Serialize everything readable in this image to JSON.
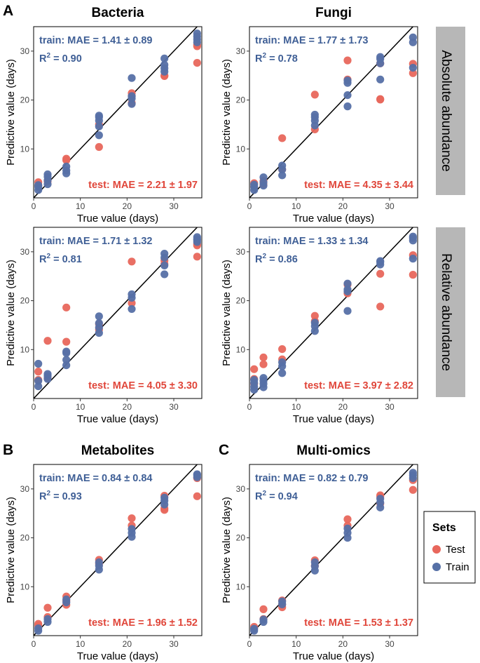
{
  "colors": {
    "test": "#e8675c",
    "train": "#5670a6",
    "train_text": "#3f5f96",
    "test_text": "#e0463a",
    "strip": "#b7b7b7"
  },
  "panel_letters": [
    "A",
    "B",
    "C"
  ],
  "strips": [
    "Absolute abundance",
    "Relative abundance"
  ],
  "legend": {
    "title": "Sets",
    "items": [
      "Test",
      "Train"
    ]
  },
  "chart_data": [
    {
      "type": "scatter",
      "title": "Bacteria",
      "xlabel": "True value (days)",
      "ylabel": "Predictive value (days)",
      "xlim": [
        0,
        36
      ],
      "ylim": [
        0,
        35
      ],
      "xticks": [
        0,
        10,
        20,
        30
      ],
      "yticks": [
        10,
        20,
        30
      ],
      "train_text": "train: MAE = 1.41 ± 0.89",
      "r2_value": "0.90",
      "test_text": "test: MAE = 2.21 ± 1.97",
      "train": [
        [
          1,
          1.6
        ],
        [
          1,
          2.2
        ],
        [
          1,
          2.6
        ],
        [
          3,
          2.8
        ],
        [
          3,
          3.6
        ],
        [
          3,
          4.3
        ],
        [
          3,
          4.8
        ],
        [
          7,
          5
        ],
        [
          7,
          5.6
        ],
        [
          7,
          6.4
        ],
        [
          14,
          12.8
        ],
        [
          14,
          14.6
        ],
        [
          14,
          15.8
        ],
        [
          14,
          16.5
        ],
        [
          14,
          16.8
        ],
        [
          21,
          19.2
        ],
        [
          21,
          20.3
        ],
        [
          21,
          20.8
        ],
        [
          21,
          24.5
        ],
        [
          28,
          25.8
        ],
        [
          28,
          26.5
        ],
        [
          28,
          27.2
        ],
        [
          28,
          28.5
        ],
        [
          35,
          31.8
        ],
        [
          35,
          32.4
        ],
        [
          35,
          33
        ],
        [
          35,
          33.6
        ]
      ],
      "test": [
        [
          1,
          2.5
        ],
        [
          1,
          3.2
        ],
        [
          3,
          3.4
        ],
        [
          7,
          7.7
        ],
        [
          7,
          8
        ],
        [
          14,
          10.4
        ],
        [
          14,
          15
        ],
        [
          21,
          19.4
        ],
        [
          21,
          20.8
        ],
        [
          21,
          21.4
        ],
        [
          28,
          24.9
        ],
        [
          28,
          25
        ],
        [
          35,
          27.6
        ],
        [
          35,
          31
        ],
        [
          35,
          31.3
        ]
      ]
    },
    {
      "type": "scatter",
      "title": "Fungi",
      "xlabel": "True value (days)",
      "ylabel": "Predictive value (days)",
      "xlim": [
        0,
        36
      ],
      "ylim": [
        0,
        35
      ],
      "xticks": [
        0,
        10,
        20,
        30
      ],
      "yticks": [
        10,
        20,
        30
      ],
      "train_text": "train: MAE = 1.77 ± 1.73",
      "r2_value": "0.78",
      "test_text": "test: MAE = 4.35 ± 3.44",
      "train": [
        [
          1,
          1.6
        ],
        [
          1,
          2.2
        ],
        [
          1,
          2.7
        ],
        [
          3,
          2.5
        ],
        [
          3,
          3.2
        ],
        [
          3,
          4.2
        ],
        [
          7,
          4.6
        ],
        [
          7,
          5.8
        ],
        [
          7,
          6.6
        ],
        [
          14,
          14.8
        ],
        [
          14,
          15.8
        ],
        [
          14,
          16.5
        ],
        [
          14,
          17
        ],
        [
          21,
          18.7
        ],
        [
          21,
          21
        ],
        [
          21,
          23.5
        ],
        [
          21,
          24
        ],
        [
          28,
          24.2
        ],
        [
          28,
          27.5
        ],
        [
          28,
          28.4
        ],
        [
          28,
          28.8
        ],
        [
          35,
          26.6
        ],
        [
          35,
          31.8
        ],
        [
          35,
          32.8
        ]
      ],
      "test": [
        [
          1,
          2.3
        ],
        [
          1,
          3
        ],
        [
          3,
          2.8
        ],
        [
          3,
          3.5
        ],
        [
          7,
          5.8
        ],
        [
          7,
          12.2
        ],
        [
          14,
          14
        ],
        [
          14,
          21.1
        ],
        [
          21,
          24.2
        ],
        [
          21,
          28.1
        ],
        [
          28,
          20.1
        ],
        [
          28,
          20.2
        ],
        [
          28,
          27.5
        ],
        [
          35,
          25.5
        ],
        [
          35,
          27.4
        ]
      ]
    },
    {
      "type": "scatter",
      "title": "",
      "xlabel": "True value (days)",
      "ylabel": "Predictive value (days)",
      "xlim": [
        0,
        36
      ],
      "ylim": [
        0,
        35
      ],
      "xticks": [
        0,
        10,
        20,
        30
      ],
      "yticks": [
        10,
        20,
        30
      ],
      "train_text": "train: MAE = 1.71 ± 1.32",
      "r2_value": "0.81",
      "test_text": "test: MAE = 4.05 ± 3.30",
      "train": [
        [
          1,
          2.5
        ],
        [
          1,
          3.6
        ],
        [
          1,
          7.1
        ],
        [
          3,
          4
        ],
        [
          3,
          4.6
        ],
        [
          3,
          5
        ],
        [
          7,
          6.8
        ],
        [
          7,
          7.9
        ],
        [
          7,
          9.3
        ],
        [
          7,
          9.6
        ],
        [
          14,
          13.4
        ],
        [
          14,
          14.5
        ],
        [
          14,
          15.4
        ],
        [
          14,
          16.8
        ],
        [
          21,
          18.3
        ],
        [
          21,
          20.6
        ],
        [
          21,
          21.3
        ],
        [
          28,
          25.4
        ],
        [
          28,
          27.2
        ],
        [
          28,
          28.8
        ],
        [
          28,
          29.6
        ],
        [
          35,
          32
        ],
        [
          35,
          32.4
        ],
        [
          35,
          33
        ],
        [
          35,
          32.6
        ]
      ],
      "test": [
        [
          1,
          3.8
        ],
        [
          1,
          5.5
        ],
        [
          3,
          4.2
        ],
        [
          3,
          11.8
        ],
        [
          7,
          11.6
        ],
        [
          7,
          18.6
        ],
        [
          14,
          14.1
        ],
        [
          14,
          15.2
        ],
        [
          21,
          19.5
        ],
        [
          21,
          28
        ],
        [
          28,
          27.5
        ],
        [
          28,
          28.2
        ],
        [
          35,
          29
        ],
        [
          35,
          31.3
        ],
        [
          35,
          31.6
        ]
      ]
    },
    {
      "type": "scatter",
      "title": "",
      "xlabel": "True value (days)",
      "ylabel": "Predictive value (days)",
      "xlim": [
        0,
        36
      ],
      "ylim": [
        0,
        35
      ],
      "xticks": [
        0,
        10,
        20,
        30
      ],
      "yticks": [
        10,
        20,
        30
      ],
      "train_text": "train: MAE = 1.33 ± 1.34",
      "r2_value": "0.86",
      "test_text": "test: MAE = 3.97 ± 2.82",
      "train": [
        [
          1,
          1.8
        ],
        [
          1,
          2.4
        ],
        [
          1,
          3.2
        ],
        [
          1,
          3.8
        ],
        [
          3,
          2.3
        ],
        [
          3,
          3
        ],
        [
          3,
          3.6
        ],
        [
          3,
          4.2
        ],
        [
          7,
          5.2
        ],
        [
          7,
          6.6
        ],
        [
          7,
          7.4
        ],
        [
          14,
          13.8
        ],
        [
          14,
          14.8
        ],
        [
          14,
          15.5
        ],
        [
          21,
          17.9
        ],
        [
          21,
          21.9
        ],
        [
          21,
          22.3
        ],
        [
          21,
          23.5
        ],
        [
          28,
          27.4
        ],
        [
          28,
          27.9
        ],
        [
          28,
          28.1
        ],
        [
          35,
          28.6
        ],
        [
          35,
          32.3
        ],
        [
          35,
          32.8
        ],
        [
          35,
          33.1
        ]
      ],
      "test": [
        [
          1,
          3
        ],
        [
          1,
          4
        ],
        [
          1,
          6
        ],
        [
          3,
          7
        ],
        [
          3,
          8.4
        ],
        [
          7,
          8
        ],
        [
          7,
          10.1
        ],
        [
          14,
          15.8
        ],
        [
          14,
          16.9
        ],
        [
          21,
          21.5
        ],
        [
          21,
          23.3
        ],
        [
          28,
          18.8
        ],
        [
          28,
          25.5
        ],
        [
          35,
          25.3
        ],
        [
          35,
          29.3
        ]
      ]
    },
    {
      "type": "scatter",
      "title": "Metabolites",
      "xlabel": "True value (days)",
      "ylabel": "Predictive value (days)",
      "xlim": [
        0,
        36
      ],
      "ylim": [
        0,
        35
      ],
      "xticks": [
        0,
        10,
        20,
        30
      ],
      "yticks": [
        10,
        20,
        30
      ],
      "train_text": "train: MAE = 0.84 ± 0.84",
      "r2_value": "0.93",
      "test_text": "test: MAE = 1.96 ± 1.52",
      "train": [
        [
          1,
          1
        ],
        [
          1,
          1.5
        ],
        [
          3,
          2.8
        ],
        [
          3,
          3.4
        ],
        [
          7,
          6.8
        ],
        [
          7,
          7.4
        ],
        [
          14,
          13.5
        ],
        [
          14,
          14.3
        ],
        [
          14,
          15
        ],
        [
          21,
          20.2
        ],
        [
          21,
          21
        ],
        [
          21,
          21.8
        ],
        [
          28,
          26.8
        ],
        [
          28,
          27.6
        ],
        [
          28,
          28.2
        ],
        [
          35,
          32.4
        ],
        [
          35,
          33
        ],
        [
          35,
          32.8
        ]
      ],
      "test": [
        [
          1,
          2
        ],
        [
          1,
          2.4
        ],
        [
          3,
          3.8
        ],
        [
          3,
          5.7
        ],
        [
          7,
          6.3
        ],
        [
          7,
          7.1
        ],
        [
          7,
          8
        ],
        [
          14,
          14.7
        ],
        [
          14,
          15.5
        ],
        [
          21,
          22.5
        ],
        [
          21,
          24
        ],
        [
          28,
          25.7
        ],
        [
          28,
          26
        ],
        [
          28,
          28.6
        ],
        [
          35,
          28.5
        ],
        [
          35,
          32.2
        ]
      ]
    },
    {
      "type": "scatter",
      "title": "Multi-omics",
      "xlabel": "True value (days)",
      "ylabel": "Predictive value (days)",
      "xlim": [
        0,
        36
      ],
      "ylim": [
        0,
        35
      ],
      "xticks": [
        0,
        10,
        20,
        30
      ],
      "yticks": [
        10,
        20,
        30
      ],
      "train_text": "train: MAE = 0.82 ± 0.79",
      "r2_value": "0.94",
      "test_text": "test: MAE = 1.53 ± 1.37",
      "train": [
        [
          1,
          1
        ],
        [
          1,
          1.4
        ],
        [
          3,
          2.8
        ],
        [
          3,
          3.3
        ],
        [
          7,
          6.4
        ],
        [
          7,
          7
        ],
        [
          14,
          13.3
        ],
        [
          14,
          14.2
        ],
        [
          14,
          15
        ],
        [
          21,
          20
        ],
        [
          21,
          21
        ],
        [
          21,
          21.9
        ],
        [
          28,
          26.2
        ],
        [
          28,
          27.2
        ],
        [
          28,
          28
        ],
        [
          35,
          32.2
        ],
        [
          35,
          32.8
        ],
        [
          35,
          33.3
        ]
      ],
      "test": [
        [
          1,
          1.5
        ],
        [
          1,
          1.8
        ],
        [
          3,
          3.4
        ],
        [
          3,
          5.4
        ],
        [
          7,
          5.8
        ],
        [
          7,
          6.4
        ],
        [
          7,
          7.2
        ],
        [
          14,
          14.3
        ],
        [
          14,
          15.4
        ],
        [
          21,
          22.5
        ],
        [
          21,
          23.8
        ],
        [
          28,
          27
        ],
        [
          28,
          28.4
        ],
        [
          28,
          28.7
        ],
        [
          35,
          29.8
        ],
        [
          35,
          31.8
        ]
      ]
    }
  ]
}
